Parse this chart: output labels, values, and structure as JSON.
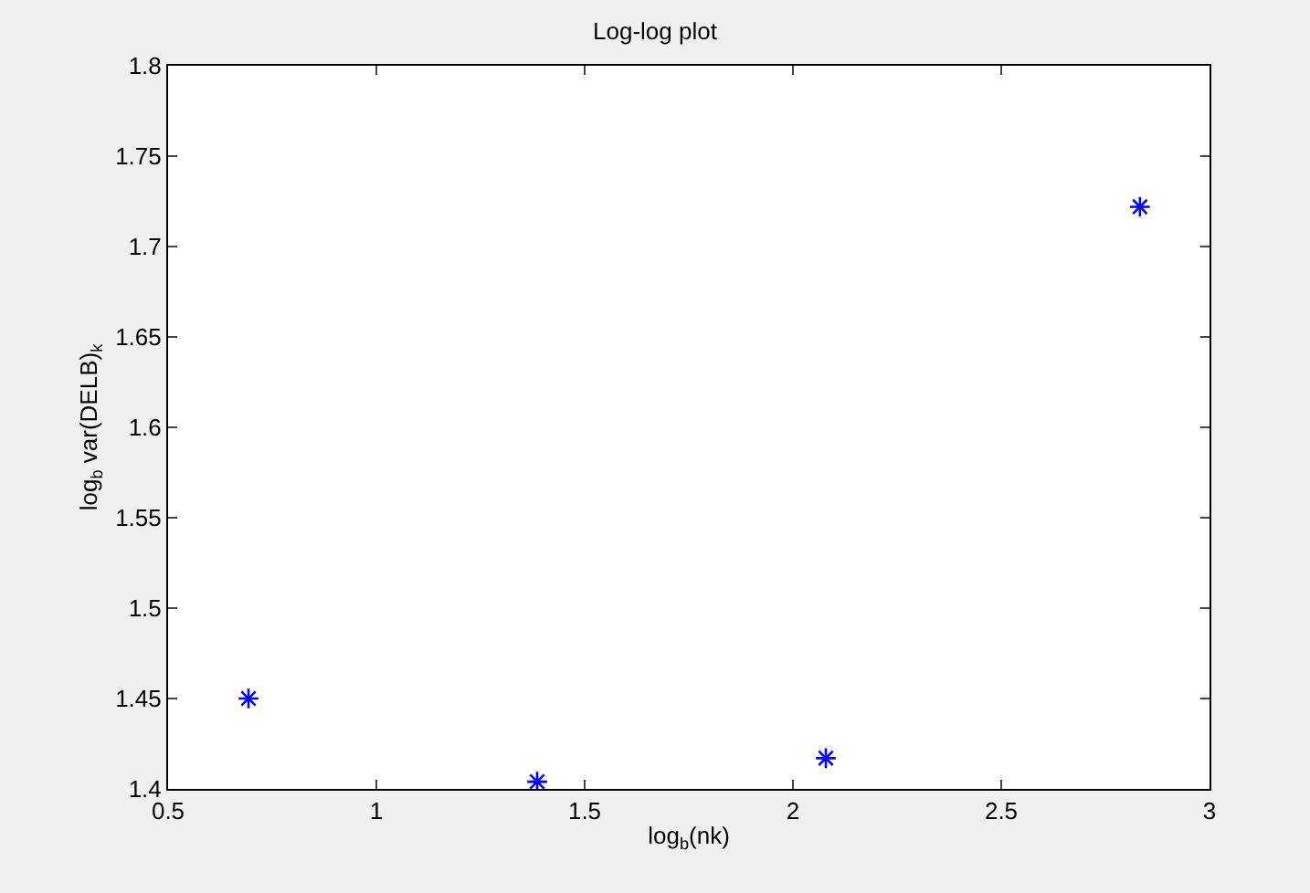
{
  "chart_data": {
    "type": "scatter",
    "title": "Log-log plot",
    "xlabel": "log$_{b}$(nk)",
    "ylabel": "log$_{b}$ var(DELB)$_{k}$",
    "x": [
      0.693,
      1.386,
      2.079,
      2.833
    ],
    "series": [
      {
        "color": "#0000ff",
        "values": [
          1.45,
          1.404,
          1.417,
          1.722
        ]
      }
    ],
    "xlim": [
      0.5,
      3
    ],
    "xticks": [
      0.5,
      1,
      1.5,
      2,
      2.5,
      3
    ],
    "ylim": [
      1.4,
      1.8
    ],
    "yticks": [
      1.4,
      1.45,
      1.5,
      1.55,
      1.6,
      1.65,
      1.7,
      1.75,
      1.8
    ],
    "marker": "cross"
  }
}
